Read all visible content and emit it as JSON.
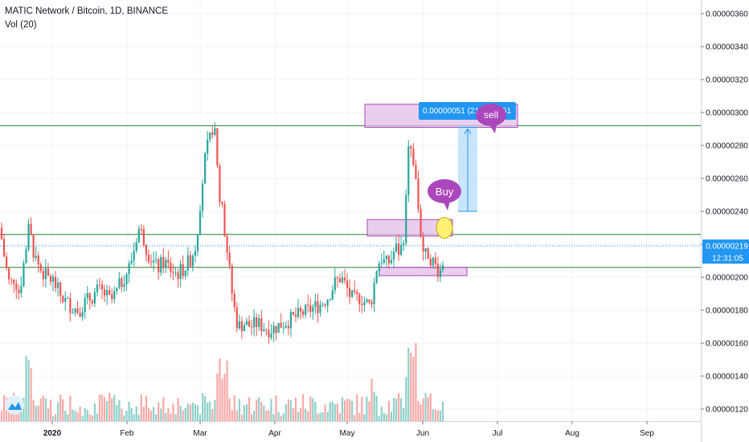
{
  "header": {
    "title": "MATIC Network / Bitcoin, 1D, BINANCE",
    "volume_label": "Vol (20)"
  },
  "colors": {
    "up": "#26a69a",
    "down": "#ef5350",
    "up_vol": "#8fd1c9",
    "down_vol": "#f7a9a7",
    "hline": "#2e7d32",
    "zone": "#e1bee7",
    "zone_border": "#ab47bc",
    "measure": "#bbdefb",
    "measure_line": "#2196f3",
    "price_tag": "#2196f3"
  },
  "chart_data": {
    "type": "candlestick",
    "title": "MATIC Network / Bitcoin, 1D, BINANCE",
    "ylim": [
      1.1e-06,
      3.7e-06
    ],
    "y_ticks": [
      "0.00000360",
      "0.00000340",
      "0.00000320",
      "0.00000300",
      "0.00000280",
      "0.00000260",
      "0.00000240",
      "0.00000220",
      "0.00000200",
      "0.00000180",
      "0.00000160",
      "0.00000140",
      "0.00000120"
    ],
    "x_ticks": [
      "2020",
      "Feb",
      "Mar",
      "Apr",
      "May",
      "Jun",
      "Jul",
      "Aug",
      "Sep"
    ],
    "last_price": "0.00000219",
    "countdown": "12:31:05",
    "horizontal_lines": [
      2.92e-06,
      2.26e-06,
      2.06e-06
    ],
    "annotations": {
      "measure_label": "0.00000051 (21.10%) 51",
      "sell": "sell",
      "buy": "Buy"
    }
  }
}
